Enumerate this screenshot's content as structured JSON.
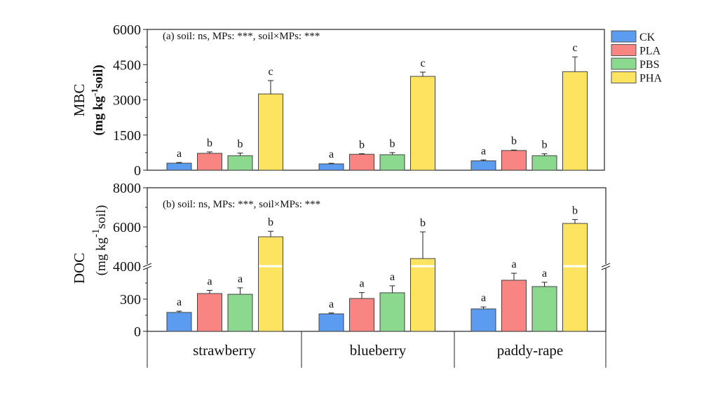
{
  "chart_data": [
    {
      "type": "bar",
      "panel_label": "(a) soil: ns, MPs: ***, soil×MPs: ***",
      "ylabel_line1": "MBC",
      "ylabel_line2": [
        "(mg kg",
        "-1",
        "soil)"
      ],
      "ylim": [
        0,
        6000
      ],
      "yticks": [
        "0",
        "1500",
        "3000",
        "4500",
        "6000"
      ],
      "categories": [
        "strawberry",
        "blueberry",
        "paddy-rape"
      ],
      "series": [
        {
          "name": "CK",
          "values": [
            300,
            270,
            400
          ],
          "errors": [
            30,
            25,
            40
          ],
          "letters": [
            "a",
            "a",
            "a"
          ]
        },
        {
          "name": "PLA",
          "values": [
            720,
            680,
            840
          ],
          "errors": [
            60,
            25,
            20
          ],
          "letters": [
            "b",
            "b",
            "b"
          ]
        },
        {
          "name": "PBS",
          "values": [
            620,
            660,
            620
          ],
          "errors": [
            110,
            90,
            80
          ],
          "letters": [
            "b",
            "b",
            "b"
          ]
        },
        {
          "name": "PHA",
          "values": [
            3250,
            4000,
            4200
          ],
          "errors": [
            570,
            180,
            630
          ],
          "letters": [
            "c",
            "c",
            "c"
          ]
        }
      ]
    },
    {
      "type": "bar",
      "panel_label": "(b) soil: ns, MPs: ***, soil×MPs: ***",
      "ylabel_line1": "DOC",
      "ylabel_line2": [
        "(mg kg",
        "-1",
        "soil)"
      ],
      "y_axis_break": [
        600,
        4000
      ],
      "ylim": [
        0,
        8000
      ],
      "yticks": [
        "0",
        "300",
        "4000",
        "6000",
        "8000"
      ],
      "categories": [
        "strawberry",
        "blueberry",
        "paddy-rape"
      ],
      "series": [
        {
          "name": "CK",
          "values": [
            176,
            163,
            209
          ],
          "errors": [
            12,
            8,
            18
          ],
          "letters": [
            "a",
            "a",
            "a"
          ]
        },
        {
          "name": "PLA",
          "values": [
            352,
            306,
            476
          ],
          "errors": [
            30,
            55,
            65
          ],
          "letters": [
            "a",
            "a",
            "a"
          ]
        },
        {
          "name": "PBS",
          "values": [
            345,
            359,
            417
          ],
          "errors": [
            60,
            65,
            40
          ],
          "letters": [
            "a",
            "a",
            "a"
          ]
        },
        {
          "name": "PHA",
          "values": [
            5500,
            4390,
            6180
          ],
          "errors": [
            280,
            1360,
            200
          ],
          "letters": [
            "b",
            "b",
            "b"
          ]
        }
      ]
    }
  ],
  "legend": {
    "placement": "right",
    "items": [
      {
        "name": "CK",
        "color": "#5b9cf0"
      },
      {
        "name": "PLA",
        "color": "#f98583"
      },
      {
        "name": "PBS",
        "color": "#8bd88f"
      },
      {
        "name": "PHA",
        "color": "#fde460"
      }
    ]
  }
}
